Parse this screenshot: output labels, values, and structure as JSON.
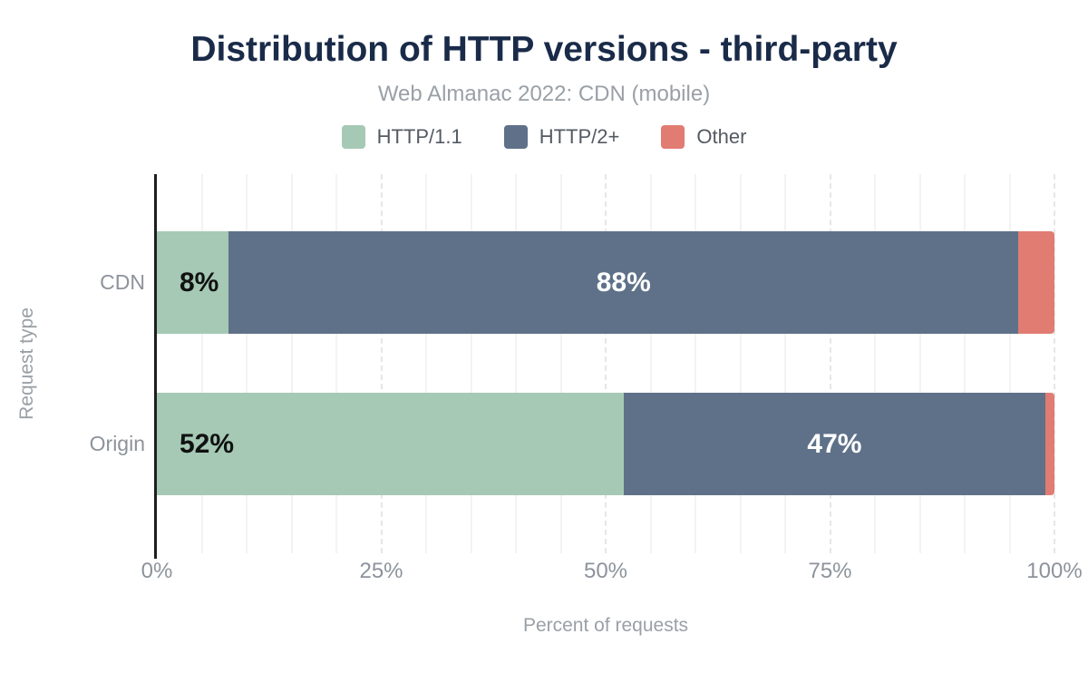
{
  "title": "Distribution of HTTP versions - third-party",
  "subtitle": "Web Almanac 2022: CDN (mobile)",
  "chart_data": {
    "type": "bar",
    "orientation": "horizontal",
    "stacked": true,
    "unit": "%",
    "categories": [
      "CDN",
      "Origin"
    ],
    "series": [
      {
        "name": "HTTP/1.1",
        "color": "#a5c9b5",
        "values": [
          8,
          52
        ]
      },
      {
        "name": "HTTP/2+",
        "color": "#5f7189",
        "values": [
          88,
          47
        ]
      },
      {
        "name": "Other",
        "color": "#e17c73",
        "values": [
          4,
          1
        ]
      }
    ],
    "bar_labels": [
      [
        "8%",
        "88%",
        ""
      ],
      [
        "52%",
        "47%",
        ""
      ]
    ],
    "xlabel": "Percent of requests",
    "ylabel": "Request type",
    "x_ticks": [
      "0%",
      "25%",
      "50%",
      "75%",
      "100%"
    ],
    "x_tick_values": [
      0,
      25,
      50,
      75,
      100
    ],
    "xlim": [
      0,
      100
    ],
    "grid": {
      "minor_step": 5,
      "major_step": 25
    },
    "legend_position": "top"
  },
  "colors": {
    "title": "#1a2b49",
    "subtitle": "#9aa0a6",
    "axis_text": "#8d939b",
    "legend_text": "#545a63",
    "grid_minor": "#f3f3f3",
    "grid_major": "#e6e6e6",
    "axis_line": "#1f1f1f",
    "label_on_light": "#111111",
    "label_on_dark": "#ffffff"
  }
}
